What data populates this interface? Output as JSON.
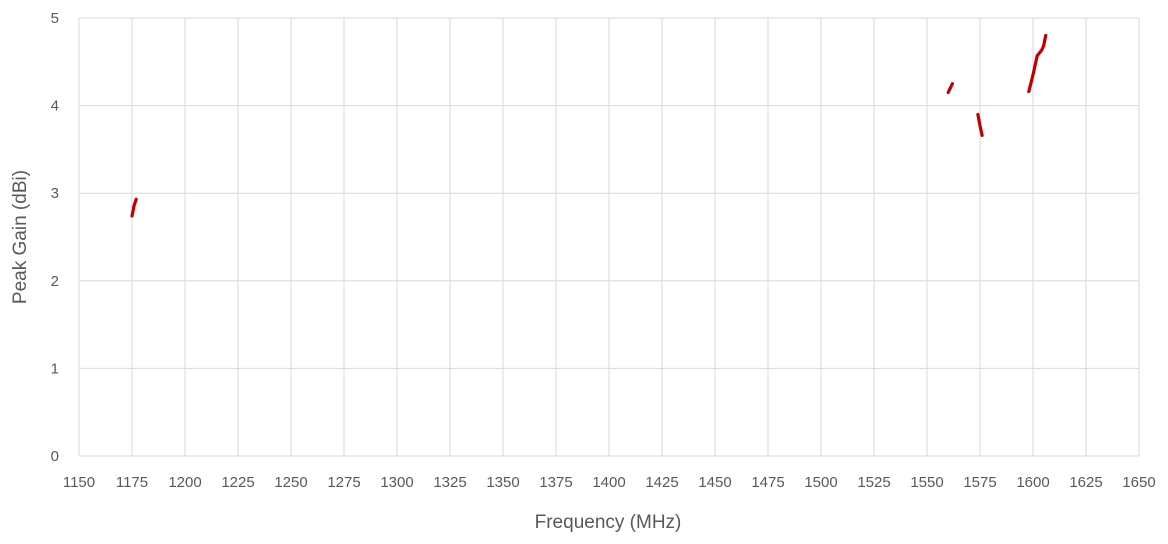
{
  "chart_data": {
    "type": "line",
    "title": "",
    "xlabel": "Frequency (MHz)",
    "ylabel": "Peak Gain (dBi)",
    "xlim": [
      1150,
      1650
    ],
    "ylim": [
      0,
      5
    ],
    "x_ticks": [
      "1150",
      "1175",
      "1200",
      "1225",
      "1250",
      "1275",
      "1300",
      "1325",
      "1350",
      "1375",
      "1400",
      "1425",
      "1450",
      "1475",
      "1500",
      "1525",
      "1550",
      "1575",
      "1600",
      "1625",
      "1650"
    ],
    "y_ticks": [
      "0",
      "1",
      "2",
      "3",
      "4",
      "5"
    ],
    "grid": true,
    "legend": "none",
    "line_color": "#c00000",
    "series": [
      {
        "segments": [
          {
            "x": [
              1175,
              1176,
              1177
            ],
            "y": [
              2.74,
              2.86,
              2.93
            ]
          },
          {
            "x": [
              1560,
              1562
            ],
            "y": [
              4.15,
              4.25
            ]
          },
          {
            "x": [
              1574,
              1575,
              1576
            ],
            "y": [
              3.9,
              3.77,
              3.66
            ]
          },
          {
            "x": [
              1598,
              1600,
              1602,
              1604,
              1605,
              1606
            ],
            "y": [
              4.16,
              4.35,
              4.57,
              4.63,
              4.68,
              4.8
            ]
          }
        ]
      }
    ]
  }
}
